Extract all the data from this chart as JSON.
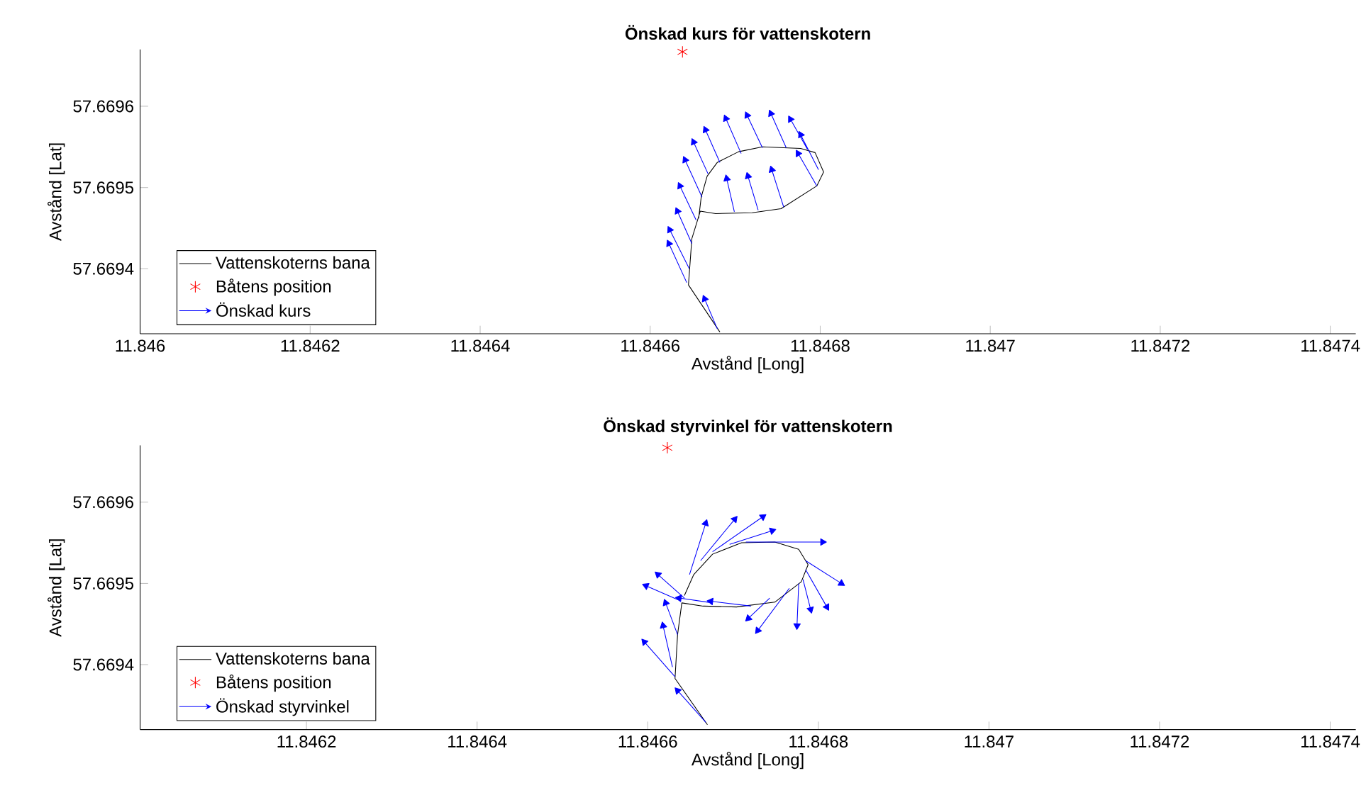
{
  "chart_data": [
    {
      "type": "line",
      "title": "Önskad kurs för vattenskotern",
      "xlabel": "Avstånd [Long]",
      "ylabel": "Avstånd [Lat]",
      "xlim": [
        11.846,
        11.84743
      ],
      "ylim": [
        57.66932,
        57.66967
      ],
      "xticks": [
        11.846,
        11.8462,
        11.8464,
        11.8466,
        11.8468,
        11.847,
        11.8472,
        11.8474
      ],
      "yticks": [
        57.6694,
        57.6695,
        57.6696
      ],
      "legend": "bottom left",
      "grid": false,
      "series": [
        {
          "name": "Vattenskoterns bana",
          "type": "line",
          "color": "#000000",
          "marker": "none",
          "line_style": "solid",
          "x": [
            11.846682,
            11.846645,
            11.846649,
            11.846659,
            11.846677,
            11.84672,
            11.846754,
            11.846796,
            11.846804,
            11.846794,
            11.846777,
            11.846732,
            11.846704,
            11.846679,
            11.846667,
            11.84666,
            11.846657
          ],
          "values": [
            57.669322,
            57.66938,
            57.669437,
            57.669471,
            57.669468,
            57.669469,
            57.669474,
            57.669502,
            57.669519,
            57.669543,
            57.669548,
            57.66955,
            57.669544,
            57.669531,
            57.669514,
            57.669488,
            57.669462
          ]
        },
        {
          "name": "Båtens position",
          "type": "scatter",
          "color": "#ff0000",
          "marker": "cross",
          "x": [
            11.846638
          ],
          "values": [
            57.669667
          ]
        },
        {
          "name": "Önskad kurs",
          "type": "line",
          "color": "#0000ff",
          "marker": "triangle",
          "line_style": "solid",
          "x": [
            11.846679,
            11.846664,
            null,
            11.846643,
            11.846622,
            null,
            11.846646,
            11.846623,
            null,
            11.846649,
            11.846632,
            null,
            11.846654,
            11.846635,
            null,
            11.846661,
            11.846641,
            null,
            11.846668,
            11.846651,
            null,
            11.846682,
            11.846665,
            null,
            11.846707,
            11.846689,
            null,
            11.846732,
            11.846714,
            null,
            11.84676,
            11.846742,
            null,
            11.846785,
            11.846765,
            null,
            11.846798,
            11.846777,
            null,
            11.846796,
            11.846774,
            null,
            11.846757,
            11.846743,
            null,
            11.846727,
            11.846715,
            null,
            11.846699,
            11.84669
          ],
          "values": [
            57.669326,
            57.669363,
            null,
            57.669383,
            57.669431,
            null,
            57.6694,
            57.669448,
            null,
            57.669431,
            57.669471,
            null,
            57.66946,
            57.669502,
            null,
            57.669488,
            57.669534,
            null,
            57.669517,
            57.669556,
            null,
            57.669531,
            57.669571,
            null,
            57.669542,
            57.669585,
            null,
            57.669549,
            57.669589,
            null,
            57.669549,
            57.669591,
            null,
            57.669547,
            57.669584,
            null,
            57.669522,
            57.669565,
            null,
            57.669502,
            57.669542,
            null,
            57.669476,
            57.669522,
            null,
            57.669472,
            57.669514,
            null,
            57.66947,
            57.669511
          ]
        }
      ]
    },
    {
      "type": "line",
      "title": "Önskad styrvinkel för vattenskotern",
      "xlabel": "Avstånd [Long]",
      "ylabel": "Avstånd [Lat]",
      "xlim": [
        11.846005,
        11.84743
      ],
      "ylim": [
        57.66932,
        57.66967
      ],
      "xticks": [
        11.8462,
        11.8464,
        11.8466,
        11.8468,
        11.847,
        11.8472,
        11.8474
      ],
      "yticks": [
        57.6694,
        57.6695,
        57.6696
      ],
      "legend": "bottom left",
      "grid": false,
      "series": [
        {
          "name": "Vattenskoterns bana",
          "type": "line",
          "color": "#000000",
          "marker": "none",
          "line_style": "solid",
          "x": [
            11.84667,
            11.846632,
            11.846635,
            11.84664,
            11.846665,
            11.846704,
            11.846749,
            11.84678,
            11.846788,
            11.846777,
            11.846749,
            11.84671,
            11.846676,
            11.846654,
            11.846643
          ],
          "values": [
            57.669326,
            57.669383,
            57.669437,
            57.669476,
            57.669472,
            57.669471,
            57.669477,
            57.669502,
            57.669523,
            57.669542,
            57.669551,
            57.66955,
            57.669536,
            57.669511,
            57.669485
          ]
        },
        {
          "name": "Båtens position",
          "type": "scatter",
          "color": "#ff0000",
          "marker": "cross",
          "x": [
            11.846623
          ],
          "values": [
            57.669667
          ]
        },
        {
          "name": "Önskad styrvinkel",
          "type": "line",
          "color": "#0000ff",
          "marker": "triangle",
          "line_style": "solid",
          "x": [
            11.846668,
            11.846635,
            null,
            11.846632,
            11.846596,
            null,
            11.846629,
            11.846618,
            null,
            11.846635,
            11.846621,
            null,
            11.846637,
            11.846598,
            null,
            11.846643,
            11.846612,
            null,
            11.846649,
            11.846668,
            null,
            11.846662,
            11.846702,
            null,
            11.846676,
            11.846735,
            null,
            11.846696,
            11.846746,
            null,
            11.846715,
            11.846805,
            null,
            11.846785,
            11.846827,
            null,
            11.846785,
            11.84681,
            null,
            11.846782,
            11.846791,
            null,
            11.846777,
            11.846775,
            null,
            11.846766,
            11.846729,
            null,
            11.846743,
            11.846718,
            null,
            11.846721,
            11.846674,
            null,
            11.846676,
            11.846637
          ],
          "values": [
            57.669329,
            57.669368,
            null,
            57.669385,
            57.669428,
            null,
            57.669397,
            57.669448,
            null,
            57.669437,
            57.669476,
            null,
            57.669479,
            57.669497,
            null,
            57.669482,
            57.669511,
            null,
            57.669511,
            57.669574,
            null,
            57.669528,
            57.669579,
            null,
            57.669539,
            57.669582,
            null,
            57.669548,
            57.669565,
            null,
            57.669551,
            57.669551,
            null,
            57.669528,
            57.6695,
            null,
            57.669517,
            57.669471,
            null,
            57.669505,
            57.669468,
            null,
            57.6695,
            57.669448,
            null,
            57.669494,
            57.669442,
            null,
            57.669482,
            57.669457,
            null,
            57.669472,
            57.669478,
            null,
            57.669476,
            57.669482
          ]
        }
      ]
    }
  ]
}
